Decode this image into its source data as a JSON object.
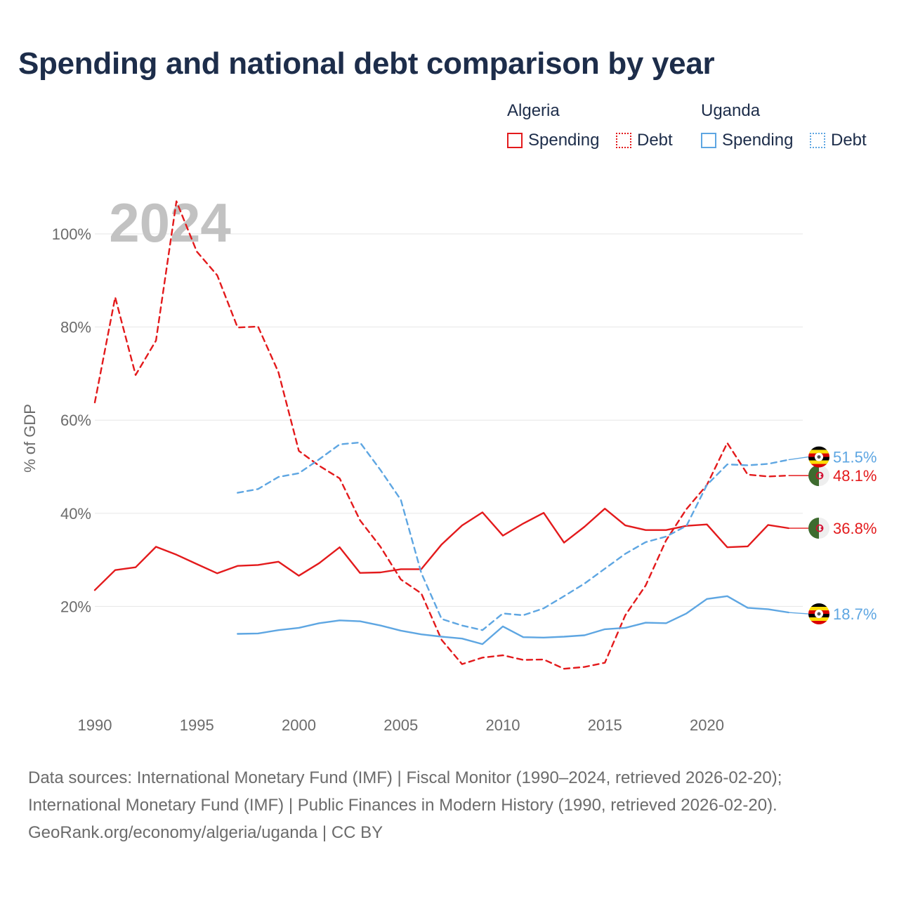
{
  "title": "Spending and national debt comparison by year",
  "legend": {
    "groups": [
      {
        "country": "Algeria",
        "items": [
          "Spending",
          "Debt"
        ]
      },
      {
        "country": "Uganda",
        "items": [
          "Spending",
          "Debt"
        ]
      }
    ]
  },
  "colors": {
    "algeria": "#e31a1c",
    "uganda": "#5ea6e2",
    "year_watermark": "#c2c2c2",
    "grid": "#e6e6e6"
  },
  "chart_data": {
    "type": "line",
    "year_watermark": "2024",
    "ylabel": "% of GDP",
    "xlim": [
      1990,
      2024.7
    ],
    "ylim": [
      0,
      108
    ],
    "yticks": [
      20,
      40,
      60,
      80,
      100
    ],
    "ytick_labels": [
      "20%",
      "40%",
      "60%",
      "80%",
      "100%"
    ],
    "xticks": [
      1990,
      1995,
      2000,
      2005,
      2010,
      2015,
      2020
    ],
    "xtick_labels": [
      "1990",
      "1995",
      "2000",
      "2005",
      "2010",
      "2015",
      "2020"
    ],
    "series": [
      {
        "name": "Algeria Spending",
        "country": "Algeria",
        "measure": "Spending",
        "style": "solid",
        "colorKey": "algeria",
        "flag": "algeria",
        "end_label": "36.8%",
        "label_value": 36.8,
        "x": [
          1990,
          1991,
          1992,
          1993,
          1994,
          1995,
          1996,
          1997,
          1998,
          1999,
          2000,
          2001,
          2002,
          2003,
          2004,
          2005,
          2006,
          2007,
          2008,
          2009,
          2010,
          2011,
          2012,
          2013,
          2014,
          2015,
          2016,
          2017,
          2018,
          2019,
          2020,
          2021,
          2022,
          2023,
          2024
        ],
        "values": [
          23.5,
          27.8,
          28.4,
          32.8,
          31.1,
          29.1,
          27.1,
          28.7,
          28.9,
          29.6,
          26.6,
          29.3,
          32.7,
          27.2,
          27.3,
          28.0,
          28.0,
          33.3,
          37.4,
          40.2,
          35.2,
          37.8,
          40.1,
          33.7,
          37.1,
          41.0,
          37.4,
          36.4,
          36.4,
          37.3,
          37.6,
          32.7,
          32.9,
          37.5,
          36.8
        ]
      },
      {
        "name": "Algeria Debt",
        "country": "Algeria",
        "measure": "Debt",
        "style": "dashed",
        "colorKey": "algeria",
        "flag": "algeria",
        "end_label": "48.1%",
        "label_value": 48.1,
        "x": [
          1990,
          1991,
          1992,
          1993,
          1994,
          1995,
          1996,
          1997,
          1998,
          1999,
          2000,
          2001,
          2002,
          2003,
          2004,
          2005,
          2006,
          2007,
          2008,
          2009,
          2010,
          2011,
          2012,
          2013,
          2014,
          2015,
          2016,
          2017,
          2018,
          2019,
          2020,
          2021,
          2022,
          2023,
          2024
        ],
        "values": [
          63.8,
          86.4,
          69.7,
          77.1,
          107.0,
          96.2,
          91.1,
          79.9,
          80.1,
          70.3,
          53.4,
          50.2,
          47.5,
          38.5,
          32.8,
          25.8,
          22.8,
          12.8,
          7.6,
          9.0,
          9.5,
          8.5,
          8.6,
          6.6,
          7.0,
          7.9,
          18.1,
          24.5,
          34.2,
          40.9,
          46.1,
          55.1,
          48.3,
          47.9,
          48.1
        ]
      },
      {
        "name": "Uganda Spending",
        "country": "Uganda",
        "measure": "Spending",
        "style": "solid",
        "colorKey": "uganda",
        "flag": "uganda",
        "end_label": "18.7%",
        "label_value": 18.7,
        "x": [
          1997,
          1998,
          1999,
          2000,
          2001,
          2002,
          2003,
          2004,
          2005,
          2006,
          2007,
          2008,
          2009,
          2010,
          2011,
          2012,
          2013,
          2014,
          2015,
          2016,
          2017,
          2018,
          2019,
          2020,
          2021,
          2022,
          2023,
          2024
        ],
        "values": [
          14.1,
          14.2,
          14.9,
          15.4,
          16.4,
          17.0,
          16.8,
          15.9,
          14.8,
          14.0,
          13.5,
          13.1,
          11.9,
          15.7,
          13.4,
          13.3,
          13.5,
          13.8,
          15.1,
          15.4,
          16.5,
          16.4,
          18.5,
          21.6,
          22.2,
          19.7,
          19.4,
          18.7
        ]
      },
      {
        "name": "Uganda Debt",
        "country": "Uganda",
        "measure": "Debt",
        "style": "dashed",
        "colorKey": "uganda",
        "flag": "uganda",
        "end_label": "51.5%",
        "label_value": 51.5,
        "x": [
          1997,
          1998,
          1999,
          2000,
          2001,
          2002,
          2003,
          2004,
          2005,
          2006,
          2007,
          2008,
          2009,
          2010,
          2011,
          2012,
          2013,
          2014,
          2015,
          2016,
          2017,
          2018,
          2019,
          2020,
          2021,
          2022,
          2023,
          2024
        ],
        "values": [
          44.4,
          45.2,
          47.8,
          48.6,
          51.6,
          54.8,
          55.2,
          49.3,
          42.9,
          27.2,
          17.3,
          15.9,
          14.9,
          18.5,
          18.1,
          19.6,
          22.2,
          24.9,
          28.1,
          31.3,
          33.8,
          35.0,
          37.3,
          46.1,
          50.5,
          50.3,
          50.6,
          51.5
        ]
      }
    ]
  },
  "source": {
    "line1": "Data sources: International Monetary Fund (IMF) | Fiscal Monitor (1990–2024, retrieved 2026-02-20);",
    "line2": "International Monetary Fund (IMF) | Public Finances in Modern History (1990, retrieved 2026-02-20).",
    "line3": "GeoRank.org/economy/algeria/uganda | CC BY"
  }
}
